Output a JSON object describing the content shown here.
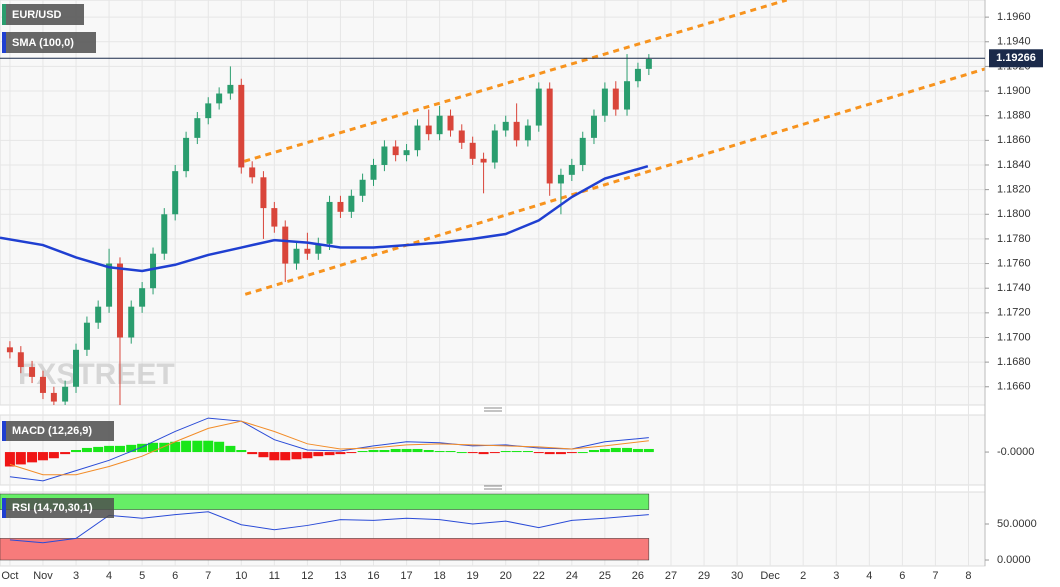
{
  "chart_data": [
    {
      "type": "candlestick",
      "title": "EUR/USD",
      "watermark": "FXSTREET",
      "up_color": "#2a9d6e",
      "down_color": "#d9453a",
      "x": [
        0,
        0.33,
        0.67,
        1,
        1.33,
        1.67,
        2,
        2.33,
        2.67,
        3,
        3.33,
        3.67,
        4,
        4.33,
        4.67,
        5,
        5.33,
        5.67,
        6,
        6.33,
        6.67,
        7,
        7.33,
        7.67,
        8,
        8.33,
        8.67,
        9,
        9.33,
        9.67,
        10,
        10.33,
        10.67,
        11,
        11.33,
        11.67,
        12,
        12.33,
        12.67,
        13,
        13.33,
        13.67,
        14,
        14.33,
        14.67,
        15,
        15.33,
        15.67,
        16,
        16.33,
        16.67,
        17,
        17.33,
        17.67,
        18,
        18.33,
        18.67,
        19,
        19.33
      ],
      "open": [
        1.1692,
        1.1688,
        1.1676,
        1.1668,
        1.1655,
        1.1648,
        1.166,
        1.169,
        1.1712,
        1.1725,
        1.176,
        1.17,
        1.1725,
        1.174,
        1.1768,
        1.18,
        1.1835,
        1.1862,
        1.1878,
        1.189,
        1.1898,
        1.1905,
        1.1838,
        1.183,
        1.1805,
        1.179,
        1.176,
        1.1772,
        1.1768,
        1.1776,
        1.181,
        1.1802,
        1.1815,
        1.1828,
        1.184,
        1.1855,
        1.1848,
        1.1852,
        1.1872,
        1.1865,
        1.188,
        1.1868,
        1.1858,
        1.1845,
        1.1842,
        1.1868,
        1.1875,
        1.186,
        1.1872,
        1.1902,
        1.1825,
        1.1832,
        1.184,
        1.1862,
        1.188,
        1.1902,
        1.1885,
        1.1908,
        1.1918
      ],
      "high": [
        1.1697,
        1.1693,
        1.1681,
        1.1673,
        1.166,
        1.1665,
        1.1695,
        1.1717,
        1.173,
        1.1772,
        1.1765,
        1.173,
        1.1745,
        1.1773,
        1.1805,
        1.184,
        1.1867,
        1.1883,
        1.1895,
        1.1903,
        1.192,
        1.191,
        1.1843,
        1.1835,
        1.181,
        1.1795,
        1.1777,
        1.1785,
        1.1781,
        1.1815,
        1.1815,
        1.182,
        1.1833,
        1.1845,
        1.186,
        1.186,
        1.1857,
        1.1877,
        1.1885,
        1.1888,
        1.1885,
        1.1873,
        1.1863,
        1.185,
        1.1873,
        1.188,
        1.189,
        1.1877,
        1.1907,
        1.1907,
        1.1837,
        1.1845,
        1.1867,
        1.1885,
        1.1907,
        1.1908,
        1.193,
        1.1923,
        1.193
      ],
      "low": [
        1.1683,
        1.1671,
        1.1663,
        1.165,
        1.1643,
        1.1643,
        1.1655,
        1.1685,
        1.1707,
        1.172,
        1.164,
        1.1695,
        1.172,
        1.1735,
        1.1763,
        1.1795,
        1.183,
        1.1857,
        1.1873,
        1.1885,
        1.1893,
        1.1833,
        1.1825,
        1.178,
        1.1785,
        1.1745,
        1.1755,
        1.1763,
        1.1763,
        1.1771,
        1.1797,
        1.1797,
        1.181,
        1.1823,
        1.1835,
        1.1843,
        1.1843,
        1.1847,
        1.186,
        1.186,
        1.1863,
        1.1853,
        1.184,
        1.1817,
        1.1837,
        1.1863,
        1.1855,
        1.1855,
        1.1867,
        1.1815,
        1.18,
        1.1827,
        1.1835,
        1.1857,
        1.1875,
        1.188,
        1.188,
        1.1903,
        1.1913
      ],
      "close": [
        1.1688,
        1.1676,
        1.1668,
        1.1655,
        1.1648,
        1.166,
        1.169,
        1.1712,
        1.1725,
        1.176,
        1.17,
        1.1725,
        1.174,
        1.1768,
        1.18,
        1.1835,
        1.1862,
        1.1878,
        1.189,
        1.1898,
        1.1905,
        1.1838,
        1.183,
        1.1805,
        1.179,
        1.176,
        1.1772,
        1.1768,
        1.1776,
        1.181,
        1.1802,
        1.1815,
        1.1828,
        1.184,
        1.1855,
        1.1848,
        1.1852,
        1.1872,
        1.1865,
        1.188,
        1.1868,
        1.1858,
        1.1845,
        1.1842,
        1.1868,
        1.1875,
        1.186,
        1.1872,
        1.1902,
        1.1825,
        1.1832,
        1.184,
        1.1862,
        1.188,
        1.1902,
        1.1885,
        1.1908,
        1.1918,
        1.1926
      ],
      "series": [
        {
          "name": "SMA (100,0)",
          "color": "#1f3fd1",
          "x": [
            -0.3,
            1,
            2,
            3,
            4,
            5,
            6,
            7,
            8,
            9,
            10,
            11,
            12,
            13,
            14,
            15,
            16,
            17,
            18,
            19.3
          ],
          "values": [
            1.1781,
            1.1775,
            1.1765,
            1.1757,
            1.1754,
            1.1759,
            1.1767,
            1.1773,
            1.1779,
            1.1777,
            1.1773,
            1.1773,
            1.1775,
            1.1777,
            1.178,
            1.1784,
            1.1795,
            1.1814,
            1.1829,
            1.1839
          ]
        }
      ],
      "trend_lines": [
        {
          "color": "#f7931e",
          "x": [
            7.09,
            23.5
          ],
          "values": [
            1.1843,
            1.19739
          ]
        },
        {
          "color": "#f7931e",
          "x": [
            7.12,
            29.5
          ],
          "values": [
            1.1735,
            1.1918
          ]
        }
      ],
      "last_price": {
        "value": 1.19266,
        "label": "1.19266"
      },
      "xlim": [
        -0.3,
        29.5
      ],
      "xticks": [
        {
          "value": 0,
          "label": "Oct"
        },
        {
          "value": 1,
          "label": "Nov"
        },
        {
          "value": 2,
          "label": "3"
        },
        {
          "value": 3,
          "label": "4"
        },
        {
          "value": 4,
          "label": "5"
        },
        {
          "value": 5,
          "label": "6"
        },
        {
          "value": 6,
          "label": "7"
        },
        {
          "value": 7,
          "label": "10"
        },
        {
          "value": 8,
          "label": "11"
        },
        {
          "value": 9,
          "label": "12"
        },
        {
          "value": 10,
          "label": "13"
        },
        {
          "value": 11,
          "label": "16"
        },
        {
          "value": 12,
          "label": "17"
        },
        {
          "value": 13,
          "label": "18"
        },
        {
          "value": 14,
          "label": "19"
        },
        {
          "value": 15,
          "label": "20"
        },
        {
          "value": 16,
          "label": "22"
        },
        {
          "value": 17,
          "label": "24"
        },
        {
          "value": 18,
          "label": "25"
        },
        {
          "value": 19,
          "label": "26"
        },
        {
          "value": 20,
          "label": "27"
        },
        {
          "value": 21,
          "label": "29"
        },
        {
          "value": 22,
          "label": "30"
        },
        {
          "value": 23,
          "label": "Dec"
        },
        {
          "value": 24,
          "label": "2"
        },
        {
          "value": 25,
          "label": "3"
        },
        {
          "value": 26,
          "label": "4"
        },
        {
          "value": 27,
          "label": "6"
        },
        {
          "value": 28,
          "label": "7"
        },
        {
          "value": 29,
          "label": "8"
        }
      ],
      "ylim": [
        1.16452,
        1.19739
      ],
      "yticks": [
        {
          "value": 1.196,
          "label": "1.1960"
        },
        {
          "value": 1.194,
          "label": "1.1940"
        },
        {
          "value": 1.192,
          "label": "1.1920"
        },
        {
          "value": 1.19,
          "label": "1.1900"
        },
        {
          "value": 1.188,
          "label": "1.1880"
        },
        {
          "value": 1.186,
          "label": "1.1860"
        },
        {
          "value": 1.184,
          "label": "1.1840"
        },
        {
          "value": 1.182,
          "label": "1.1820"
        },
        {
          "value": 1.18,
          "label": "1.1800"
        },
        {
          "value": 1.178,
          "label": "1.1780"
        },
        {
          "value": 1.176,
          "label": "1.1760"
        },
        {
          "value": 1.174,
          "label": "1.1740"
        },
        {
          "value": 1.172,
          "label": "1.1720"
        },
        {
          "value": 1.17,
          "label": "1.1700"
        },
        {
          "value": 1.168,
          "label": "1.1680"
        },
        {
          "value": 1.166,
          "label": "1.1660"
        }
      ],
      "grid": true
    },
    {
      "type": "macd",
      "title": "MACD (12,26,9)",
      "x": [
        0,
        1,
        2,
        3,
        4,
        5,
        6,
        7,
        8,
        9,
        10,
        11,
        12,
        13,
        14,
        15,
        16,
        17,
        18,
        19.33
      ],
      "lines": [
        {
          "color": "#2a4bd7",
          "values": [
            -0.0024,
            -0.0028,
            -0.0018,
            -0.0008,
            0.0005,
            0.002,
            0.0033,
            0.003,
            0.0012,
            0.0002,
            0.0001,
            0.0006,
            0.001,
            0.0009,
            0.0006,
            0.0007,
            0.0004,
            0.0003,
            0.001,
            0.0014
          ]
        },
        {
          "color": "#f28c28",
          "values": [
            -0.0012,
            -0.0022,
            -0.0022,
            -0.0014,
            -0.0004,
            0.001,
            0.0023,
            0.003,
            0.002,
            0.0008,
            0.0003,
            0.0004,
            0.0007,
            0.0008,
            0.0007,
            0.0006,
            0.0005,
            0.0003,
            0.0006,
            0.0011
          ]
        }
      ],
      "histogram": [
        -0.0014,
        -0.0012,
        -0.001,
        -0.0008,
        -0.0006,
        -0.0002,
        0.0002,
        0.0004,
        0.0005,
        0.0006,
        0.0006,
        0.0007,
        0.0008,
        0.0009,
        0.0009,
        0.001,
        0.0011,
        0.0011,
        0.0011,
        0.001,
        0.0006,
        0.0002,
        -0.0002,
        -0.0005,
        -0.0008,
        -0.0008,
        -0.0007,
        -0.0006,
        -0.0004,
        -0.0003,
        -0.0002,
        -0.0001,
        0.0001,
        0.0002,
        0.0002,
        0.0003,
        0.0003,
        0.0003,
        0.0002,
        0.0001,
        0.0001,
        0.0,
        -0.0001,
        -0.0002,
        -0.0001,
        0.0001,
        0.0001,
        0.0001,
        -0.0001,
        -0.0002,
        -0.0002,
        -0.0001,
        0.0,
        0.0002,
        0.0003,
        0.0004,
        0.0004,
        0.0003,
        0.0003
      ],
      "positive_color": "#19e619",
      "negative_color": "#f01515",
      "ylim": [
        -0.0032,
        0.0036
      ],
      "yticks": [
        {
          "value": 0,
          "label": "-0.0000"
        }
      ]
    },
    {
      "type": "rsi",
      "title": "RSI (14,70,30,1)",
      "color": "#2a4bd7",
      "values": [
        28,
        24,
        30,
        62,
        58,
        63,
        67,
        49,
        42,
        48,
        56,
        55,
        58,
        56,
        50,
        54,
        45,
        55,
        58,
        63
      ],
      "overbought": 70,
      "oversold": 30,
      "overbought_color": "#66ee66",
      "oversold_color": "#f77b7b",
      "ylim": [
        -8.3,
        94.4
      ],
      "yticks": [
        {
          "value": 50,
          "label": "50.0000"
        },
        {
          "value": 0,
          "label": "0.0000"
        }
      ]
    }
  ]
}
